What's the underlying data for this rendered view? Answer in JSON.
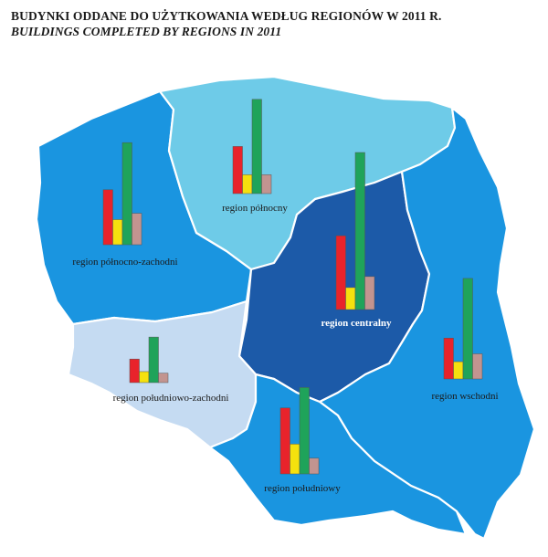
{
  "title": {
    "pl": "BUDYNKI ODDANE DO UŻYTKOWANIA WEDŁUG REGIONÓW W 2011 R.",
    "en": "BUILDINGS COMPLETED BY REGIONS IN 2011"
  },
  "legend_colors": {
    "series_1": "#e8232b",
    "series_2": "#f5e10e",
    "series_3": "#1fa35a",
    "series_4": "#c29490"
  },
  "region_colors": {
    "polnocny": "#6ecbe8",
    "polnocno_zachodni": "#1a95e0",
    "centralny": "#1c5aa8",
    "wschodni": "#1a95e0",
    "poludniowy": "#1a95e0",
    "poludniowo_zachodni": "#c5dbf2"
  },
  "regions": [
    {
      "id": "polnocny",
      "label": "region północny",
      "bars": [
        0.3,
        0.12,
        0.6,
        0.12
      ]
    },
    {
      "id": "polnocno_zachodni",
      "label": "region północno-zachodni",
      "bars": [
        0.35,
        0.16,
        0.65,
        0.2
      ]
    },
    {
      "id": "centralny",
      "label": "region centralny",
      "bars": [
        0.47,
        0.14,
        1.0,
        0.21
      ]
    },
    {
      "id": "wschodni",
      "label": "region wschodni",
      "bars": [
        0.26,
        0.11,
        0.64,
        0.16
      ]
    },
    {
      "id": "poludniowo_zachodni",
      "label": "region południowo-zachodni",
      "bars": [
        0.15,
        0.07,
        0.29,
        0.06
      ]
    },
    {
      "id": "poludniowy",
      "label": "region południowy",
      "bars": [
        0.42,
        0.19,
        0.55,
        0.1
      ]
    }
  ]
}
